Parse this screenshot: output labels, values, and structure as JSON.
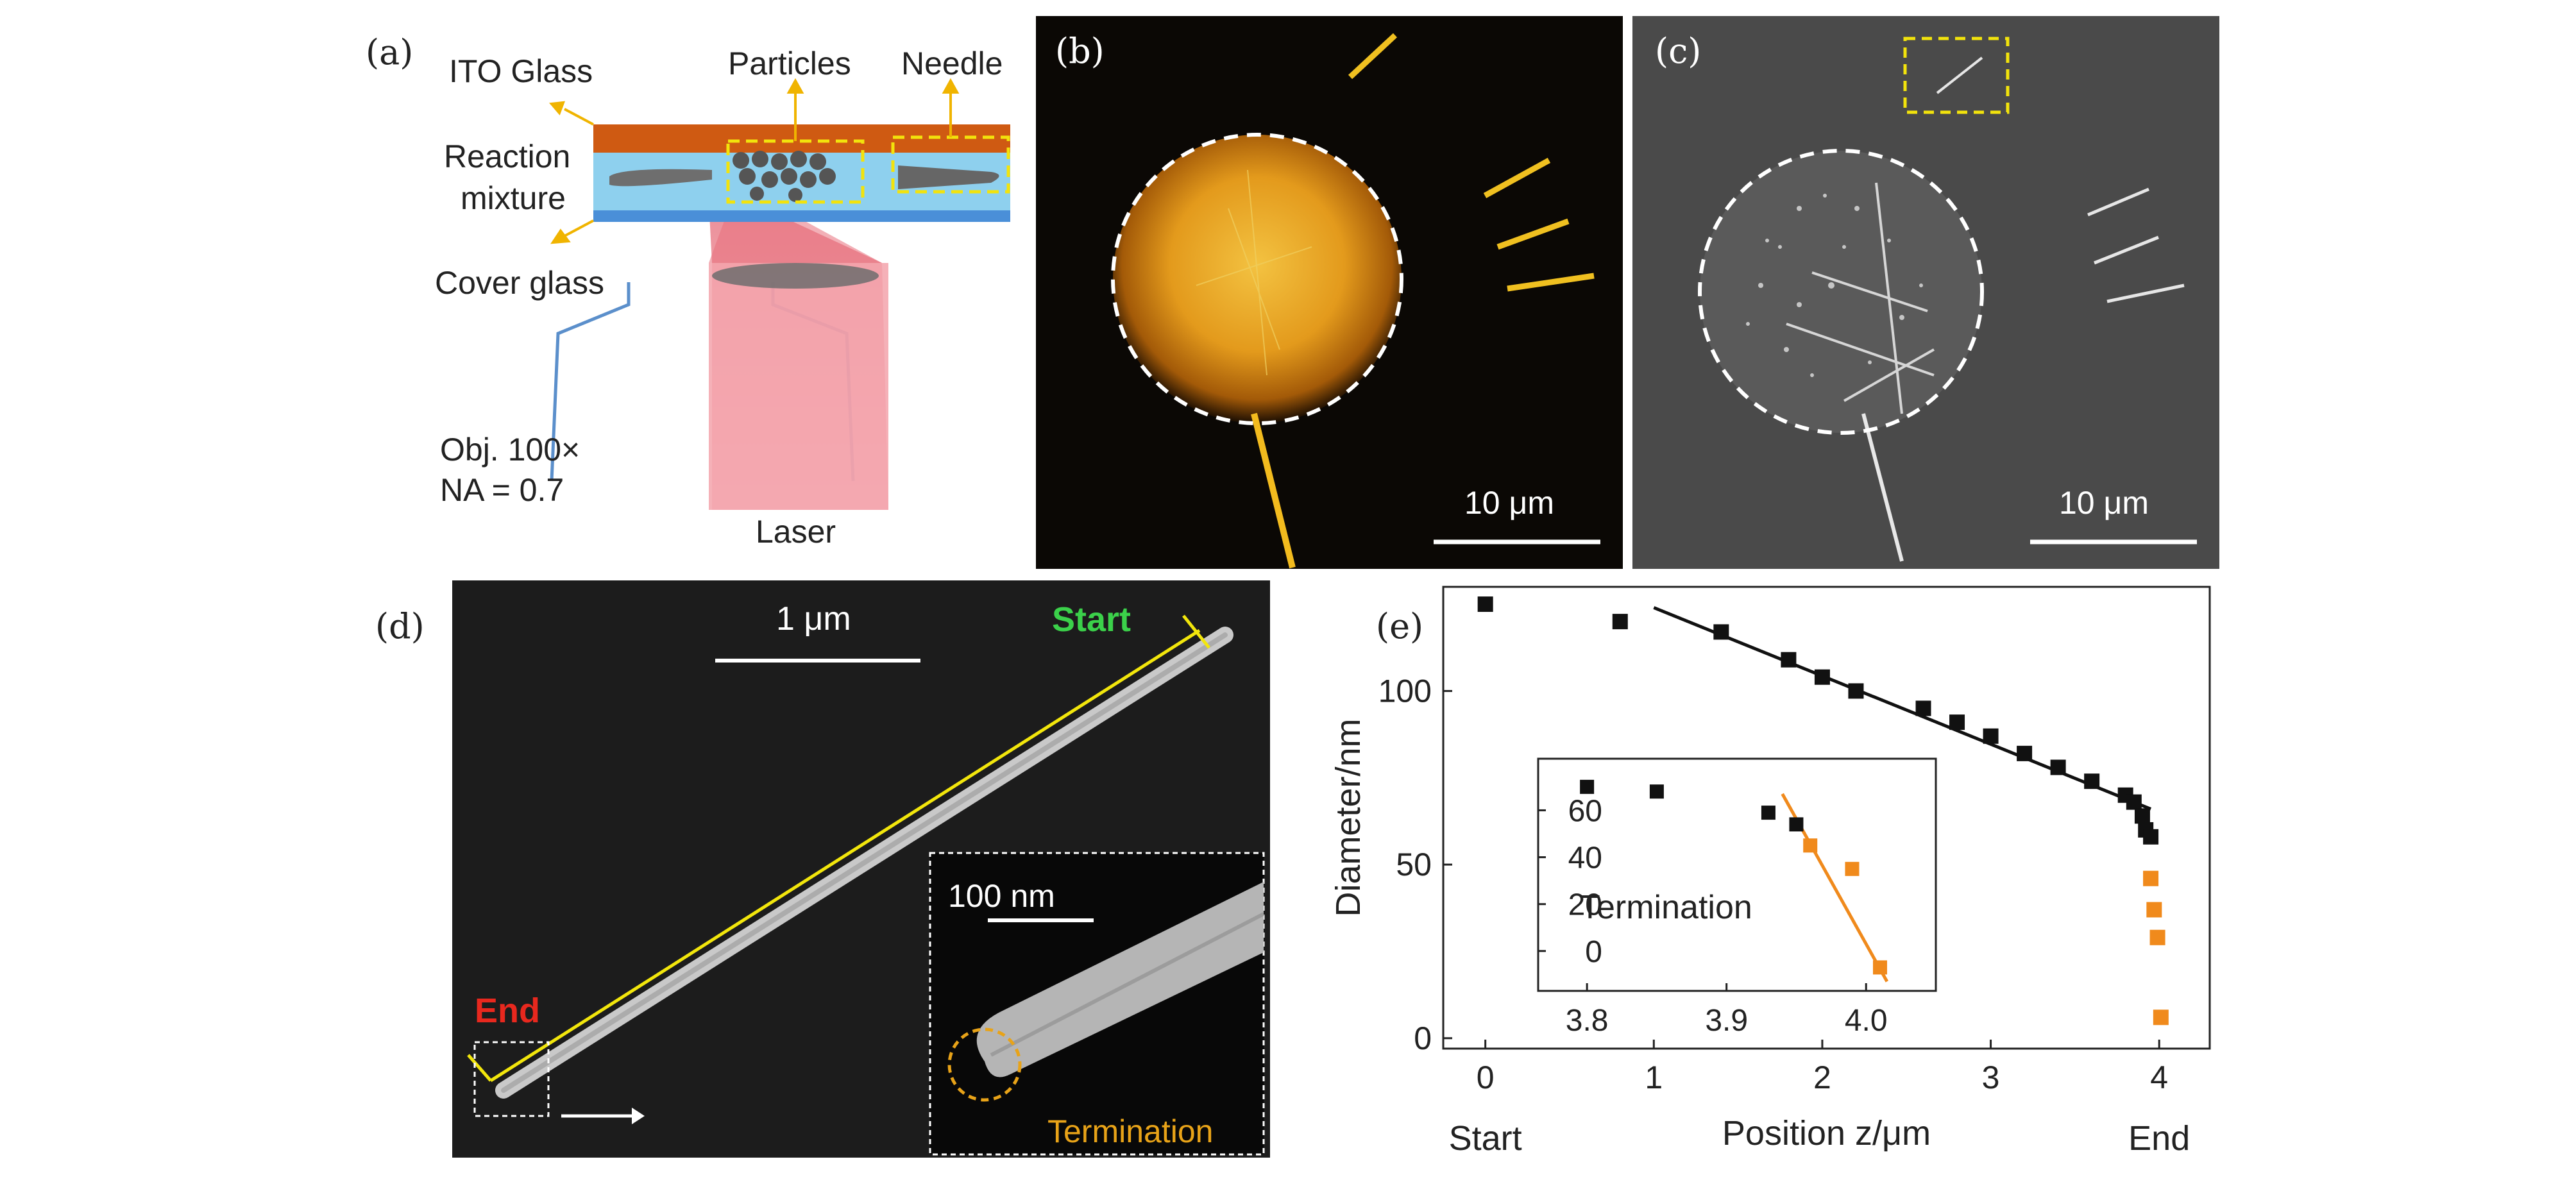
{
  "panels": {
    "a": {
      "label": "(a)",
      "ito_glass": "ITO Glass",
      "particles": "Particles",
      "needle": "Needle",
      "reaction_line1": "Reaction",
      "reaction_line2": "mixture",
      "cover_glass": "Cover glass",
      "obj_line1": "Obj. 100×",
      "obj_line2": "NA = 0.7",
      "laser": "Laser"
    },
    "b": {
      "label": "(b)",
      "scale_bar": "10 μm"
    },
    "c": {
      "label": "(c)",
      "scale_bar": "10 μm"
    },
    "d": {
      "label": "(d)",
      "scale_bar": "1 μm",
      "start": "Start",
      "end": "End",
      "inset_scale_bar": "100 nm",
      "inset_caption": "Termination",
      "colors": {
        "start": "#3bd14a",
        "end": "#e8281e",
        "arrow": "#f2e60c",
        "termination": "#e8a318"
      }
    },
    "e": {
      "label": "(e)"
    }
  },
  "chart_data": [
    {
      "type": "scatter",
      "xlabel": "Position z/μm",
      "ylabel": "Diameter/nm",
      "x_tick_labels": [
        "0",
        "1",
        "2",
        "3",
        "4"
      ],
      "y_tick_labels": [
        "0",
        "50",
        "100"
      ],
      "x_end_labels": {
        "start": "Start",
        "end": "End"
      },
      "xlim": [
        -0.25,
        4.3
      ],
      "ylim": [
        -3,
        130
      ],
      "series": [
        {
          "color": "#111111",
          "x": [
            0.0,
            0.8,
            1.4,
            1.8,
            2.0,
            2.2,
            2.6,
            2.8,
            3.0,
            3.2,
            3.4,
            3.6,
            3.8,
            3.85,
            3.9,
            3.92,
            3.95
          ],
          "y": [
            125,
            120,
            117,
            109,
            104,
            100,
            95,
            91,
            87,
            82,
            78,
            74,
            70,
            68,
            64,
            60,
            58
          ]
        },
        {
          "color": "#f08a1c",
          "x": [
            3.95,
            3.97,
            3.99,
            4.01
          ],
          "y": [
            46,
            37,
            29,
            6
          ]
        }
      ],
      "fit_line": {
        "color": "#111111",
        "x": [
          1.0,
          3.95
        ],
        "y": [
          124,
          66
        ]
      },
      "inset": {
        "annotation": "Termination",
        "x_tick_labels": [
          "3.8",
          "3.9",
          "4.0"
        ],
        "y_tick_labels": [
          "0",
          "20",
          "40",
          "60"
        ],
        "xlim": [
          3.765,
          4.05
        ],
        "ylim": [
          -17,
          82
        ],
        "series": [
          {
            "color": "#111111",
            "x": [
              3.8,
              3.85,
              3.93,
              3.95
            ],
            "y": [
              70,
              68,
              59,
              54
            ]
          },
          {
            "color": "#f08a1c",
            "x": [
              3.96,
              3.99,
              4.01
            ],
            "y": [
              45,
              35,
              -7
            ]
          }
        ],
        "fit_line": {
          "color": "#f08a1c",
          "x": [
            3.94,
            4.015
          ],
          "y": [
            67,
            -13
          ]
        }
      }
    }
  ]
}
